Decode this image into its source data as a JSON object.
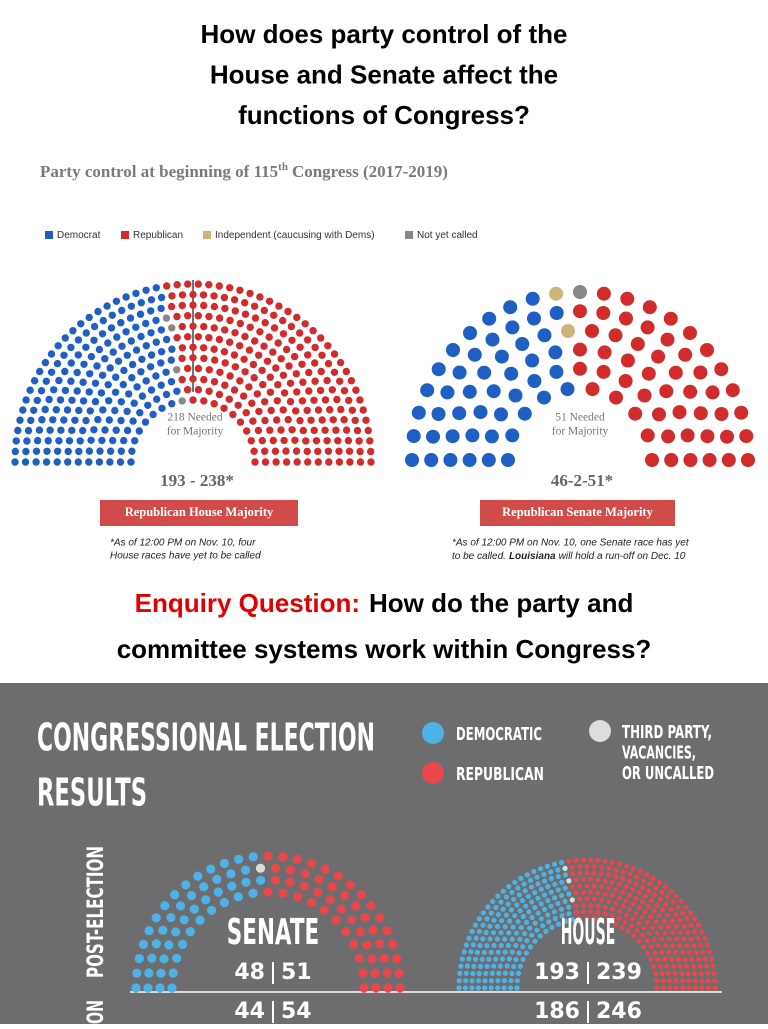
{
  "title": [
    "How does party control of the",
    "House and Senate affect the",
    "functions of Congress?"
  ],
  "heading": {
    "before": "Party control at beginning of 115",
    "sup": "th",
    "after": "Congress (2017-2019)"
  },
  "legend": [
    {
      "name": "Democrat",
      "color": "#1f5fc4"
    },
    {
      "name": "Republican",
      "color": "#d12b2b"
    },
    {
      "name": "Independent (caucusing with Dems)",
      "color": "#cdb57a"
    },
    {
      "name": "Not yet called",
      "color": "#888888"
    }
  ],
  "house": {
    "counts": [
      193,
      238,
      null,
      4
    ],
    "needed": [
      "218 Needed",
      "for Majority"
    ],
    "score": "193 - 238*",
    "banner": "Republican House Majority",
    "note": [
      "*As of 12:00 PM on Nov. 10, four",
      "House races have yet to be called"
    ]
  },
  "senate": {
    "counts": [
      46,
      51,
      2,
      1
    ],
    "needed": [
      "51 Needed",
      "for Majority"
    ],
    "score": "46-2-51*",
    "banner": "Republican Senate Majority",
    "note": [
      "*As of 12:00 PM on Nov. 10, one Senate race has yet",
      "to be called.",
      "Louisiana",
      "will hold a run-off on Dec. 10"
    ]
  },
  "enquiry": {
    "label": "Enquiry Question:",
    "lines": [
      "How do the party and",
      "committee systems work within Congress?"
    ]
  },
  "infographic": {
    "title": [
      "CONGRESSIONAL ELECTION",
      "RESULTS"
    ],
    "legend": [
      {
        "name": [
          "DEMOCRATIC"
        ],
        "color": "#4db3e6"
      },
      {
        "name": [
          "REPUBLICAN"
        ],
        "color": "#e8474c"
      },
      {
        "name": [
          "THIRD PARTY,",
          "VACANCIES,",
          "OR UNCALLED"
        ],
        "color": "#dddddd"
      }
    ],
    "row_labels": [
      "POST-ELECTION",
      "ON"
    ],
    "senate": {
      "name": "SENATE",
      "post": [
        48,
        51,
        1
      ],
      "pre": [
        44,
        54
      ]
    },
    "house": {
      "name": "HOUSE",
      "post": [
        193,
        239,
        3
      ],
      "pre": [
        186,
        246
      ]
    }
  }
}
